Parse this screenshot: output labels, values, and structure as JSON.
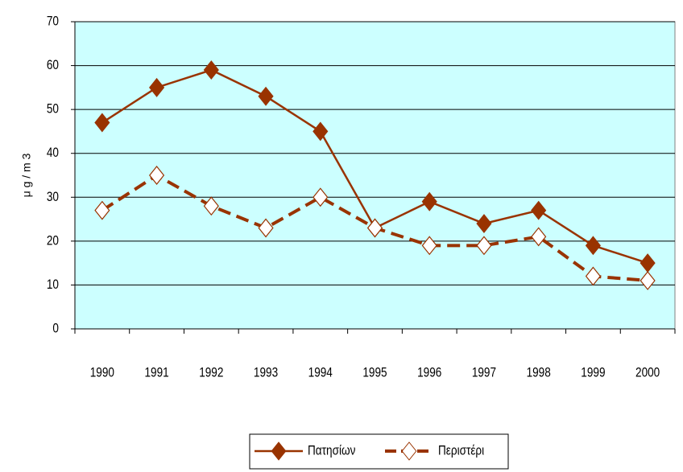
{
  "chart_data": {
    "type": "line",
    "y_label": "μ g / m 3",
    "categories": [
      "1990",
      "1991",
      "1992",
      "1993",
      "1994",
      "1995",
      "1996",
      "1997",
      "1998",
      "1999",
      "2000"
    ],
    "series": [
      {
        "name": "Πατησίων",
        "color": "#993300",
        "dashed": false,
        "marker_filled": true,
        "values": [
          47,
          55,
          59,
          53,
          45,
          23,
          29,
          24,
          27,
          19,
          15
        ]
      },
      {
        "name": "Περιστέρι",
        "color": "#993300",
        "dashed": true,
        "marker_filled": false,
        "values": [
          27,
          35,
          28,
          23,
          30,
          23,
          19,
          19,
          21,
          12,
          11
        ]
      }
    ],
    "ylim": [
      0,
      70
    ],
    "yticks": [
      0,
      10,
      20,
      30,
      40,
      50,
      60,
      70
    ],
    "grid": true,
    "plot_background": "#ccffff",
    "legend": "bottom"
  }
}
